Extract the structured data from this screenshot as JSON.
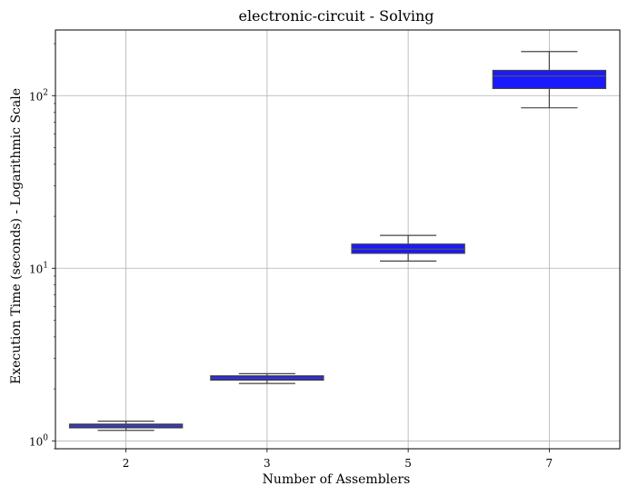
{
  "chart_data": {
    "type": "box",
    "title": "electronic-circuit - Solving",
    "xlabel": "Number of Assemblers",
    "ylabel": "Execution Time (seconds) - Logarithmic Scale",
    "y_scale": "log",
    "ylim": [
      0.9,
      240
    ],
    "yticks": [
      {
        "value": 1,
        "base": "10",
        "exp": "0"
      },
      {
        "value": 10,
        "base": "10",
        "exp": "1"
      },
      {
        "value": 100,
        "base": "10",
        "exp": "2"
      }
    ],
    "grid": true,
    "box_color": "#1a1aff",
    "categories": [
      "2",
      "3",
      "5",
      "7"
    ],
    "boxes": [
      {
        "whisker_low": 1.15,
        "q1": 1.19,
        "median": 1.22,
        "q3": 1.25,
        "whisker_high": 1.3
      },
      {
        "whisker_low": 2.15,
        "q1": 2.25,
        "median": 2.31,
        "q3": 2.38,
        "whisker_high": 2.45
      },
      {
        "whisker_low": 11.0,
        "q1": 12.2,
        "median": 12.9,
        "q3": 13.8,
        "whisker_high": 15.5
      },
      {
        "whisker_low": 85,
        "q1": 110,
        "median": 130,
        "q3": 140,
        "whisker_high": 180
      }
    ]
  }
}
